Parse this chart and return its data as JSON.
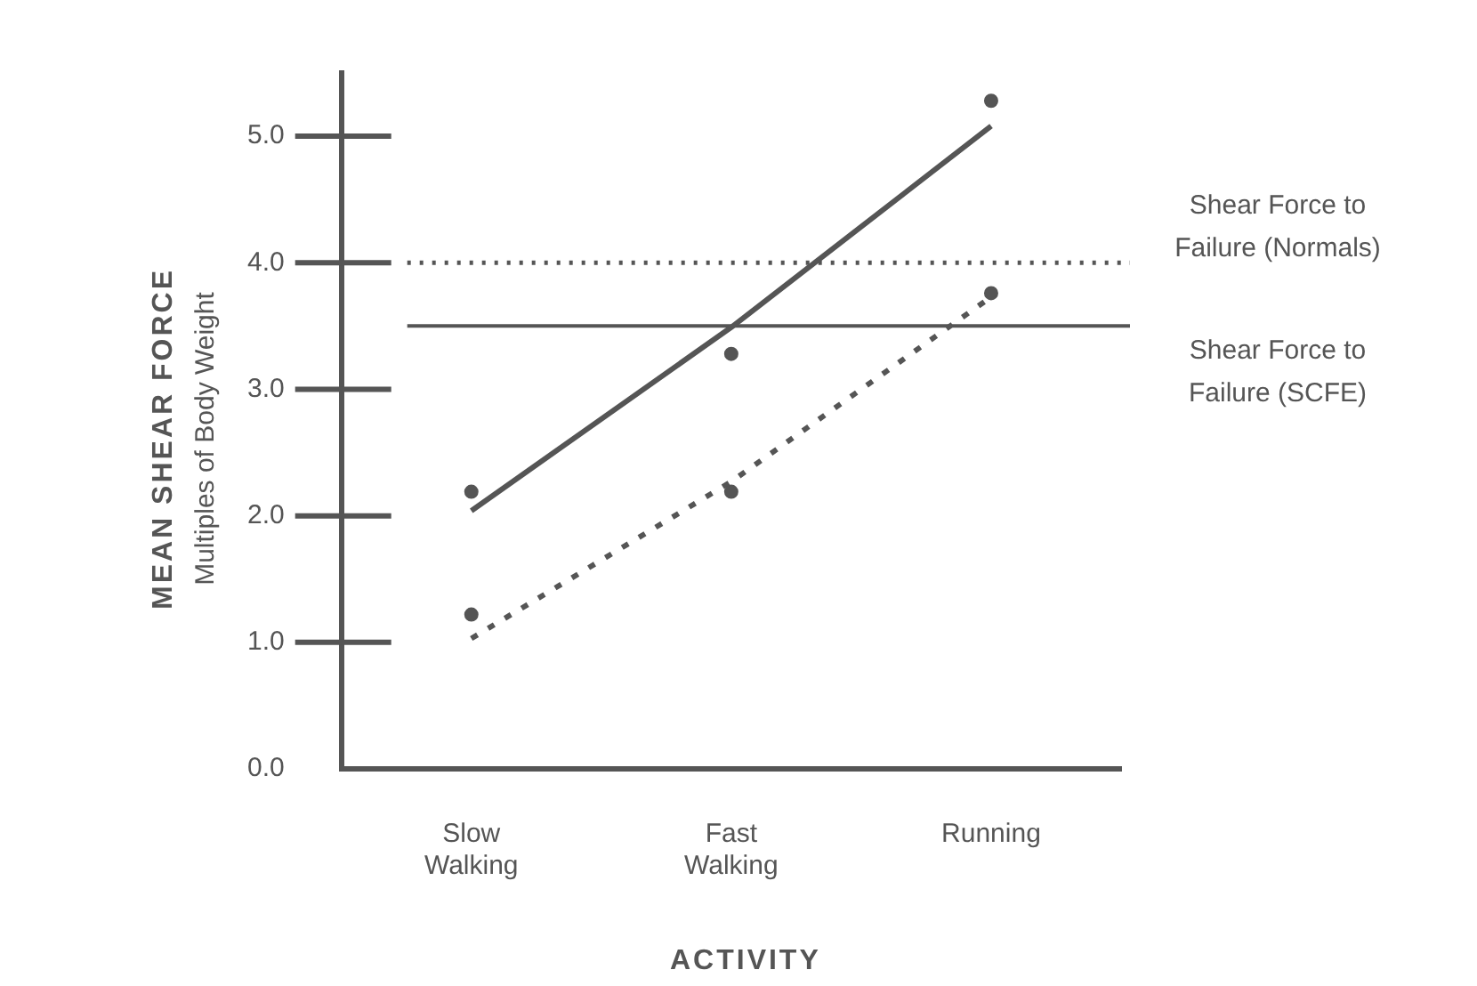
{
  "chart_data": {
    "type": "scatter",
    "xlabel": "ACTIVITY",
    "ylabel": "MEAN SHEAR FORCE\nMultiples of Body Weight",
    "categories": [
      "Slow Walking",
      "Fast Walking",
      "Running"
    ],
    "series": [
      {
        "color": "#555555",
        "marker": "circle",
        "values": [
          2.19,
          3.28,
          5.28
        ]
      },
      {
        "color": "#555555",
        "marker": "circle",
        "values": [
          1.22,
          2.19,
          3.76
        ]
      },
      {
        "type": "line",
        "color": "#555555",
        "line_style": "solid",
        "values": [
          2.04,
          3.49,
          5.08
        ]
      },
      {
        "type": "line",
        "color": "#555555",
        "line_style": "dotted",
        "values": [
          1.03,
          2.27,
          3.73
        ]
      }
    ],
    "ylim": [
      0,
      5.5
    ],
    "yticks": [
      {
        "value": 0,
        "label": "0.0"
      },
      {
        "value": 1,
        "label": "1.0"
      },
      {
        "value": 2,
        "label": "2.0"
      },
      {
        "value": 3,
        "label": "3.0"
      },
      {
        "value": 4,
        "label": "4.0"
      },
      {
        "value": 5,
        "label": "5.0"
      }
    ],
    "ref_lines": [
      {
        "axis": "y",
        "value": 4,
        "label": "Shear Force to Failure (Normals)",
        "line_style": "dotted",
        "color": "#555555"
      },
      {
        "axis": "y",
        "value": 3.5,
        "label": "Shear Force to Failure (SCFE)",
        "line_style": "solid",
        "color": "#555555"
      }
    ],
    "grid": false,
    "legend": false
  }
}
